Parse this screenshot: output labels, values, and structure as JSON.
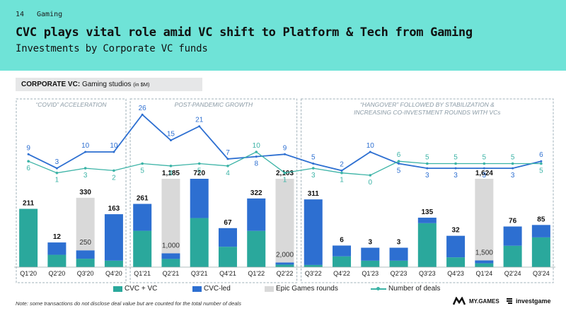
{
  "header": {
    "page_number": "14",
    "section": "Gaming",
    "title": "CVC plays vital role amid VC shift to Platform & Tech from Gaming",
    "subtitle": "Investments by Corporate VC funds"
  },
  "chart_label": {
    "bold": "CORPORATE VC:",
    "text": "Gaming studios",
    "small": "(in $M)"
  },
  "periods": [
    {
      "label": "“COVID” ACCELERATION",
      "label2": ""
    },
    {
      "label": "POST-PANDEMIC GROWTH",
      "label2": ""
    },
    {
      "label": "“HANGOVER” FOLLOWED BY STABILIZATION &",
      "label2": "INCREASING CO-INVESTMENT ROUNDS WITH VCs"
    }
  ],
  "colors": {
    "header_bg": "#6fe3d7",
    "cvc_vc": "#2aa89c",
    "cvc_led": "#2d6fd1",
    "epic": "#d9d9d9",
    "line_cvc_led": "#2d6fd1",
    "line_deals": "#3bb3a6"
  },
  "chart_data": {
    "type": "bar",
    "stacked": true,
    "categories": [
      "Q1'20",
      "Q2'20",
      "Q3'20",
      "Q4'20",
      "Q1'21",
      "Q2'21",
      "Q3'21",
      "Q4'21",
      "Q1'22",
      "Q2'22",
      "Q3'22",
      "Q4'22",
      "Q1'23",
      "Q2'23",
      "Q3'23",
      "Q4'23",
      "Q1'24",
      "Q2'24",
      "Q3'24"
    ],
    "totals": [
      "211",
      "12",
      "330",
      "163",
      "261",
      "1,185",
      "720",
      "67",
      "322",
      "2,103",
      "311",
      "6",
      "3",
      "3",
      "135",
      "32",
      "1,624",
      "76",
      "85"
    ],
    "series": [
      {
        "name": "CVC + VC",
        "values": [
          211,
          6,
          40,
          20,
          150,
          110,
          400,
          35,
          170,
          60,
          10,
          3,
          1,
          1,
          120,
          10,
          70,
          40,
          60
        ]
      },
      {
        "name": "CVC-led",
        "values": [
          0,
          6,
          40,
          143,
          111,
          75,
          320,
          32,
          152,
          43,
          301,
          3,
          2,
          2,
          15,
          22,
          54,
          36,
          25
        ]
      },
      {
        "name": "Epic Games rounds",
        "values": [
          0,
          0,
          250,
          0,
          0,
          1000,
          0,
          0,
          0,
          2000,
          0,
          0,
          0,
          0,
          0,
          0,
          1500,
          0,
          0
        ]
      }
    ],
    "epic_labels": [
      "",
      "",
      "250",
      "",
      "",
      "1,000",
      "",
      "",
      "",
      "2,000",
      "",
      "",
      "",
      "",
      "",
      "",
      "1,500",
      "",
      ""
    ],
    "deal_lines": [
      {
        "name": "CVC-led deals",
        "values": [
          9,
          3,
          10,
          10,
          26,
          15,
          21,
          7,
          8,
          9,
          5,
          2,
          10,
          5,
          3,
          3,
          3,
          3,
          6
        ]
      },
      {
        "name": "Number of deals",
        "values": [
          6,
          1,
          3,
          2,
          5,
          4,
          5,
          4,
          10,
          1,
          3,
          1,
          0,
          6,
          5,
          5,
          5,
          5,
          5
        ]
      }
    ],
    "legend": [
      "CVC + VC",
      "CVC-led",
      "Epic Games rounds",
      "Number of deals"
    ]
  },
  "note": "Note: some transactions do not disclose deal value but are counted for the total number of deals",
  "brands": {
    "mygames": "MY.GAMES",
    "investgame": "investgame"
  }
}
